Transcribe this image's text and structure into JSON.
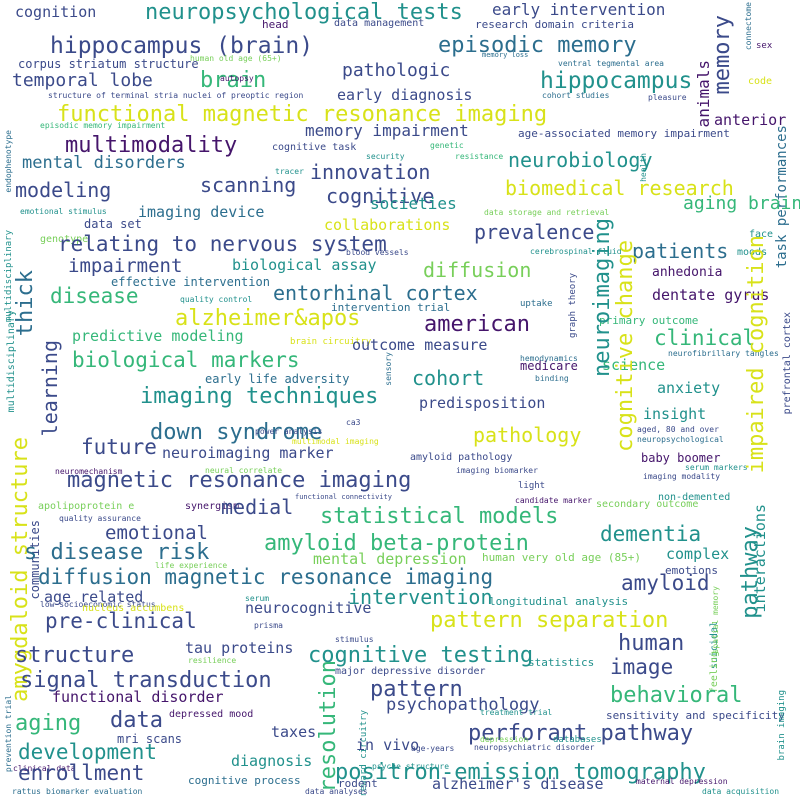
{
  "palette": {
    "dark_purple": "#45156b",
    "indigo": "#3b4a8a",
    "blue": "#2c6e8e",
    "teal": "#21918c",
    "green": "#35b779",
    "light_green": "#78cf5a",
    "yellow": "#d8e219"
  },
  "words": [
    "cognition",
    "neuropsychological tests",
    "early intervention",
    "connectome",
    "sex",
    "head",
    "data management",
    "research domain criteria",
    "memory loss",
    "hippocampus (brain)",
    "episodic memory",
    "corpus striatum structure",
    "human old age (65+)",
    "ventral tegmental area",
    "temporal lobe",
    "brain",
    "pathologic",
    "hippocampus",
    "structure of terminal stria nuclei of preoptic region",
    "autopsy",
    "cohort studies",
    "pleasure",
    "endophenotype",
    "code",
    "early diagnosis",
    "memory",
    "animals",
    "functional magnetic resonance imaging",
    "episodic memory impairment",
    "anterior",
    "memory impairment",
    "age-associated memory impairment",
    "task performances",
    "multimodality",
    "cognitive task",
    "genetic",
    "security",
    "resistance",
    "health",
    "mental disorders",
    "neurobiology",
    "innovation",
    "modeling",
    "scanning",
    "cognitive",
    "biomedical research",
    "emotional stimulus",
    "multidisciplinary",
    "societies",
    "aging brain",
    "imaging device",
    "data storage and retrieval",
    "data set",
    "collaborations",
    "genotype",
    "tracer",
    "relating to nervous system",
    "prevalence",
    "face",
    "moods",
    "cerebrospinal fluid",
    "blood vessels",
    "impairment",
    "biological assay",
    "patients",
    "thick",
    "diffusion",
    "anhedonia",
    "effective intervention",
    "entorhinal cortex",
    "disease",
    "graph theory",
    "dentate gyrus",
    "quality control",
    "intervention trial",
    "uptake",
    "alzheimer&apos",
    "american",
    "primary outcome",
    "learning",
    "predictive modeling",
    "brain circuitry",
    "clinical",
    "prefrontal cortex",
    "multidisciplinary",
    "biological markers",
    "outcome measure",
    "hemodynamics",
    "neurofibrillary tangles",
    "medicare",
    "sensory",
    "binding",
    "cohort",
    "science",
    "early life adversity",
    "imaging techniques",
    "anxiety",
    "predisposition",
    "insight",
    "down syndrome",
    "pathology",
    "aged, 80 and over",
    "neuropsychological",
    "neuroimaging",
    "future",
    "ca3",
    "multimodal imaging",
    "power analysis",
    "neuroimaging marker",
    "amyloid pathology",
    "baby boomer",
    "neuromechanism",
    "neural correlate",
    "serum markers",
    "magnetic resonance imaging",
    "imaging biomarker",
    "imaging modality",
    "functional connectivity",
    "light",
    "candidate marker",
    "non-demented",
    "communities",
    "cognitive change",
    "impaired cognition",
    "apolipoprotein e",
    "synergism",
    "medial",
    "quality assurance",
    "statistical models",
    "secondary outcome",
    "emotional",
    "dementia",
    "amygdaloid structure",
    "s disease risk",
    "amyloid beta-protein",
    "mental depression",
    "human very old age (85+)",
    "complex",
    "life experience",
    "emotions",
    "diffusion magnetic resonance imaging",
    "amyloid",
    "age related",
    "intervention",
    "low socioeconomic status",
    "serum",
    "longitudinal analysis",
    "neurocognitive",
    "suicidal",
    "feeling",
    "spatial memory",
    "nucleus accumbens",
    "pre-clinical",
    "pattern separation",
    "prisma",
    "human",
    "tau proteins",
    "resilience",
    "stimulus",
    "statistics",
    "structure",
    "cognitive testing",
    "image",
    "pathway",
    "signal transduction",
    "major depressive disorder",
    "interactions",
    "functional disorder",
    "pattern",
    "prevention trial",
    "depressed mood",
    "behavioral",
    "treatment trial",
    "aging",
    "data",
    "psychopathology",
    "reward circuitry",
    "resolution",
    "sensitivity and specificity",
    "mri scans",
    "taxes",
    "development",
    "in vivo",
    "perforant pathway",
    "age-years",
    "brain imaging",
    "clinical data",
    "diagnosis",
    "depression",
    "databases",
    "enrollment",
    "psyche structure",
    "neuropsychiatric disorder",
    "positron-emission tomography",
    "cognitive process",
    "rodent",
    "alzheimer's disease",
    "maternal depression",
    "rattus",
    "biomarker evaluation",
    "data analyses",
    "data acquisition"
  ]
}
